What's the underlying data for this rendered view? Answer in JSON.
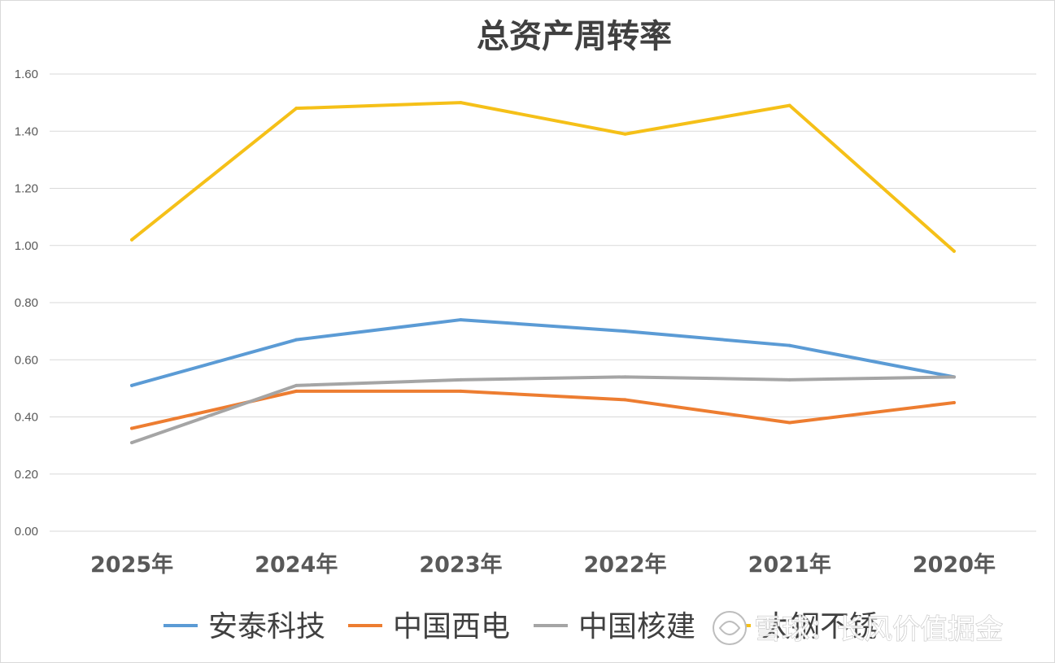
{
  "chart_data": {
    "type": "line",
    "title": "总资产周转率",
    "categories": [
      "2025年",
      "2024年",
      "2023年",
      "2022年",
      "2021年",
      "2020年"
    ],
    "yticks": [
      "0.00",
      "0.20",
      "0.40",
      "0.60",
      "0.80",
      "1.00",
      "1.20",
      "1.40",
      "1.60"
    ],
    "ylim": [
      0,
      1.6
    ],
    "grid": true,
    "legend_position": "bottom",
    "series": [
      {
        "name": "安泰科技",
        "color": "#5B9BD5",
        "values": [
          0.51,
          0.67,
          0.74,
          0.7,
          0.65,
          0.54
        ]
      },
      {
        "name": "中国西电",
        "color": "#ED7D31",
        "values": [
          0.36,
          0.49,
          0.49,
          0.46,
          0.38,
          0.45
        ]
      },
      {
        "name": "中国核建",
        "color": "#A5A5A5",
        "values": [
          0.31,
          0.51,
          0.53,
          0.54,
          0.53,
          0.54
        ]
      },
      {
        "name": "太钢不锈",
        "color": "#F5C018",
        "values": [
          1.02,
          1.48,
          1.5,
          1.39,
          1.49,
          0.98
        ]
      }
    ]
  },
  "watermark": {
    "text": "雪球：长风价值掘金",
    "icon": "snowball-logo-icon"
  }
}
